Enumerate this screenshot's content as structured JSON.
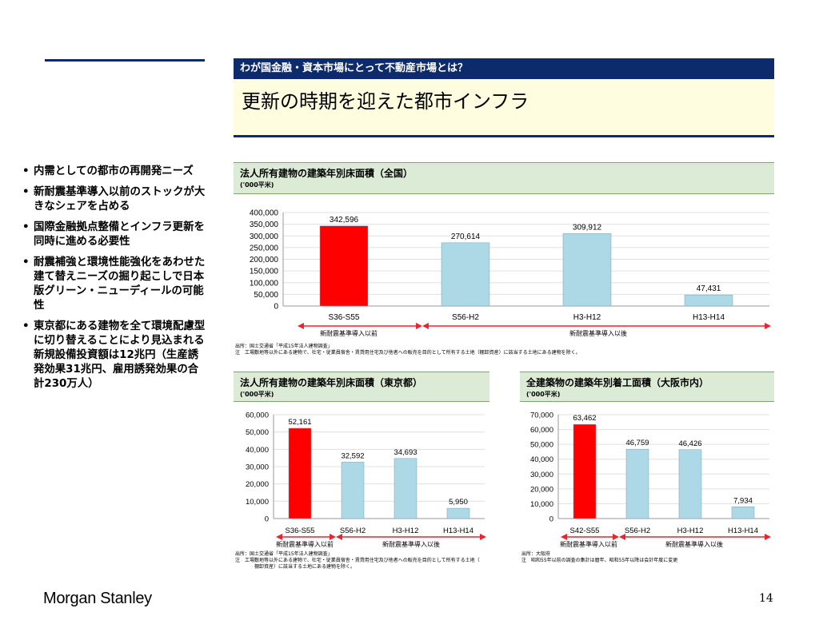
{
  "header": {
    "subtitle": "わが国金融・資本市場にとって不動産市場とは？",
    "title": "更新の時期を迎えた都市インフラ"
  },
  "bullets": [
    "内需としての都市の再開発ニーズ",
    "新耐震基準導入以前のストックが大きなシェアを占める",
    "国際金融拠点整備とインフラ更新を同時に進める必要性",
    "耐震補強と環境性能強化をあわせた建て替えニーズの掘り起こしで日本版グリーン・ニューディールの可能性",
    "東京都にある建物を全て環境配慮型に切り替えることにより見込まれる新規設備投資額は12兆円（生産誘発効果31兆円、雇用誘発効果の合計230万人）"
  ],
  "charts": [
    {
      "title": "法人所有建物の建築年別床面積（全国）",
      "unit": "('000平米)",
      "arrow_before": "新耐震基準導入以前",
      "arrow_after": "新耐震基準導入以後",
      "source": "出所：国土交通省「平成15年法人建物調査」\n注　工場敷地等以外にある建物で、社宅・従業員宿舎・賃貸用住宅及び他者への販売を目的として所有する土地（棚卸資産）に該当する土地にある建物を除く。",
      "value_labels": [
        "342,596",
        "270,614",
        "309,912",
        "47,431"
      ],
      "tick_labels": [
        "400,000",
        "350,000",
        "300,000",
        "250,000",
        "200,000",
        "150,000",
        "100,000",
        "50,000",
        "0"
      ]
    },
    {
      "title": "法人所有建物の建築年別床面積（東京都）",
      "unit": "('000平米)",
      "arrow_before": "新耐震基準導入以前",
      "arrow_after": "新耐震基準導入以後",
      "source": "出所：国土交通省「平成15年法人建物調査」\n注　工場敷地等以外にある建物で、社宅・従業員宿舎・賃貸用住宅及び他者への販売を目的として所有する土地（\n　　　　棚卸資産）に該当する土地にある建物を除く。",
      "value_labels": [
        "52,161",
        "32,592",
        "34,693",
        "5,950"
      ],
      "tick_labels": [
        "60,000",
        "50,000",
        "40,000",
        "30,000",
        "20,000",
        "10,000",
        "0"
      ]
    },
    {
      "title": "全建築物の建築年別着工面積（大阪市内）",
      "unit": "('000平米)",
      "arrow_before": "新耐震基準導入以前",
      "arrow_after": "新耐震基準導入以後",
      "source": "出所：大阪府\n注　昭和55年以前の調査の集計は暦年、昭和55年以降は会計年度に変更",
      "value_labels": [
        "63,462",
        "46,759",
        "46,426",
        "7,934"
      ],
      "tick_labels": [
        "70,000",
        "60,000",
        "50,000",
        "40,000",
        "30,000",
        "20,000",
        "10,000",
        "0"
      ]
    }
  ],
  "chart_data": [
    {
      "type": "bar",
      "categories": [
        "S36-S55",
        "S56-H2",
        "H3-H12",
        "H13-H14"
      ],
      "values": [
        342596,
        270614,
        309912,
        47431
      ],
      "colors": [
        "#ff0000",
        "#add8e6",
        "#add8e6",
        "#add8e6"
      ],
      "ylim": [
        0,
        400000
      ],
      "yticks": [
        0,
        50000,
        100000,
        150000,
        200000,
        250000,
        300000,
        350000,
        400000
      ],
      "grid": true
    },
    {
      "type": "bar",
      "categories": [
        "S36-S55",
        "S56-H2",
        "H3-H12",
        "H13-H14"
      ],
      "values": [
        52161,
        32592,
        34693,
        5950
      ],
      "colors": [
        "#ff0000",
        "#add8e6",
        "#add8e6",
        "#add8e6"
      ],
      "ylim": [
        0,
        60000
      ],
      "yticks": [
        0,
        10000,
        20000,
        30000,
        40000,
        50000,
        60000
      ],
      "grid": true
    },
    {
      "type": "bar",
      "categories": [
        "S42-S55",
        "S56-H2",
        "H3-H12",
        "H13-H14"
      ],
      "values": [
        63462,
        46759,
        46426,
        7934
      ],
      "colors": [
        "#ff0000",
        "#add8e6",
        "#add8e6",
        "#add8e6"
      ],
      "ylim": [
        0,
        70000
      ],
      "yticks": [
        0,
        10000,
        20000,
        30000,
        40000,
        50000,
        60000,
        70000
      ],
      "grid": true
    }
  ],
  "footer": {
    "logo": "Morgan Stanley",
    "page_number": "14"
  },
  "colors": {
    "navy": "#0d2a6b",
    "title_bg": "#fffde0",
    "chart_header_bg": "#dcebd6",
    "highlight_bar": "#ff0000",
    "bar": "#add8e6",
    "arrow": "#e8242c"
  }
}
